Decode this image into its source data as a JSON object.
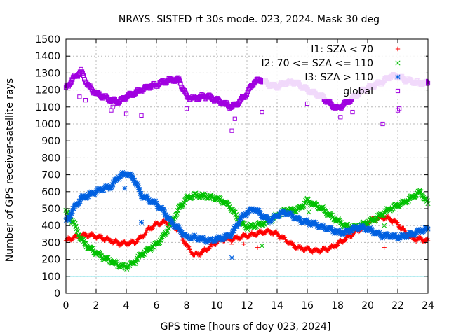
{
  "chart_data": {
    "type": "scatter",
    "title": "NRAYS. SISTED rt 30s mode. 023, 2024. Mask 30 deg",
    "xlabel": "GPS time [hours of doy 023, 2024]",
    "ylabel": "Number of GPS receiver-satellite rays",
    "xlim": [
      0,
      24
    ],
    "ylim": [
      0,
      1500
    ],
    "xticks": [
      "0",
      "2",
      "4",
      "6",
      "8",
      "10",
      "12",
      "14",
      "16",
      "18",
      "20",
      "22",
      "24"
    ],
    "yticks": [
      "0",
      "100",
      "200",
      "300",
      "400",
      "500",
      "600",
      "700",
      "800",
      "900",
      "1000",
      "1100",
      "1200",
      "1300",
      "1400",
      "1500"
    ],
    "grid": true,
    "legend_position": "top-right",
    "reference_line": {
      "y": 100,
      "color": "#00c8d8"
    },
    "series": [
      {
        "name": "I1: SZA < 70",
        "marker": "+",
        "color": "#ff0000",
        "x": [
          0,
          0.5,
          1,
          1.5,
          2,
          2.5,
          3,
          3.5,
          4,
          4.5,
          5,
          5.5,
          6,
          6.5,
          7,
          7.5,
          8,
          8.5,
          9,
          9.5,
          10,
          10.5,
          11,
          11.5,
          12,
          12.5,
          13,
          13.5,
          14,
          14.5,
          15,
          15.5,
          16,
          16.5,
          17,
          17.5,
          18,
          18.5,
          19,
          19.5,
          20,
          20.5,
          21,
          21.5,
          22,
          22.5,
          23,
          23.5,
          24
        ],
        "values": [
          310,
          330,
          340,
          345,
          335,
          325,
          310,
          295,
          295,
          300,
          330,
          380,
          410,
          420,
          410,
          370,
          280,
          225,
          240,
          270,
          305,
          320,
          320,
          330,
          340,
          350,
          360,
          365,
          350,
          320,
          285,
          265,
          260,
          250,
          255,
          265,
          290,
          320,
          350,
          380,
          420,
          440,
          450,
          440,
          410,
          360,
          320,
          320,
          310
        ]
      },
      {
        "name": "I2: 70 <= SZA <= 110",
        "marker": "x",
        "color": "#00c000",
        "x": [
          0,
          0.5,
          1,
          1.5,
          2,
          2.5,
          3,
          3.5,
          4,
          4.5,
          5,
          5.5,
          6,
          6.5,
          7,
          7.5,
          8,
          8.5,
          9,
          9.5,
          10,
          10.5,
          11,
          11.5,
          12,
          12.5,
          13,
          13.5,
          14,
          14.5,
          15,
          15.5,
          16,
          16.5,
          17,
          17.5,
          18,
          18.5,
          19,
          19.5,
          20,
          20.5,
          21,
          21.5,
          22,
          22.5,
          23,
          23.5,
          24
        ],
        "values": [
          480,
          420,
          320,
          270,
          240,
          210,
          190,
          165,
          155,
          180,
          230,
          260,
          290,
          340,
          420,
          500,
          560,
          580,
          575,
          570,
          560,
          540,
          500,
          420,
          390,
          400,
          410,
          430,
          460,
          490,
          490,
          500,
          550,
          520,
          500,
          460,
          430,
          400,
          385,
          400,
          420,
          440,
          470,
          500,
          520,
          540,
          570,
          600,
          530
        ]
      },
      {
        "name": "I3: SZA > 110",
        "marker": "*",
        "color": "#0060e0",
        "x": [
          0,
          0.5,
          1,
          1.5,
          2,
          2.5,
          3,
          3.5,
          4,
          4.5,
          5,
          5.5,
          6,
          6.5,
          7,
          7.5,
          8,
          8.5,
          9,
          9.5,
          10,
          10.5,
          11,
          11.5,
          12,
          12.5,
          13,
          13.5,
          14,
          14.5,
          15,
          15.5,
          16,
          16.5,
          17,
          17.5,
          18,
          18.5,
          19,
          19.5,
          20,
          20.5,
          21,
          21.5,
          22,
          22.5,
          23,
          23.5,
          24
        ],
        "values": [
          420,
          500,
          560,
          580,
          600,
          620,
          630,
          690,
          710,
          680,
          580,
          550,
          530,
          480,
          420,
          380,
          330,
          330,
          320,
          310,
          320,
          330,
          350,
          430,
          480,
          500,
          460,
          430,
          460,
          480,
          460,
          430,
          420,
          410,
          390,
          380,
          360,
          360,
          380,
          390,
          380,
          360,
          340,
          340,
          330,
          340,
          350,
          370,
          380
        ]
      },
      {
        "name": "global",
        "marker": "square",
        "color": "#a000e0",
        "x": [
          0,
          0.5,
          1,
          1.5,
          2,
          2.5,
          3,
          3.5,
          4,
          4.5,
          5,
          5.5,
          6,
          6.5,
          7,
          7.5,
          8,
          8.5,
          9,
          9.5,
          10,
          10.5,
          11,
          11.5,
          12,
          12.5,
          13,
          13.5,
          14,
          14.5,
          15,
          15.5,
          16,
          16.5,
          17,
          17.5,
          18,
          18.5,
          19,
          19.5,
          20,
          20.5,
          21,
          21.5,
          22,
          22.5,
          23,
          23.5,
          24
        ],
        "values": [
          1210,
          1270,
          1310,
          1220,
          1180,
          1160,
          1140,
          1130,
          1160,
          1180,
          1200,
          1220,
          1230,
          1250,
          1260,
          1260,
          1160,
          1150,
          1160,
          1160,
          1140,
          1120,
          1100,
          1130,
          1180,
          1250,
          1260,
          1230,
          1220,
          1240,
          1250,
          1230,
          1200,
          1180,
          1160,
          1120,
          1090,
          1120,
          1150,
          1190,
          1210,
          1230,
          1250,
          1280,
          1280,
          1260,
          1250,
          1240,
          1240
        ]
      }
    ],
    "outliers": [
      {
        "series": "I1: SZA < 70",
        "x": [
          11,
          11.8,
          12.7,
          21.1
        ],
        "values": [
          290,
          290,
          270,
          270
        ]
      },
      {
        "series": "I2: 70 <= SZA <= 110",
        "x": [
          13,
          16.1,
          21.1
        ],
        "values": [
          280,
          480,
          400
        ]
      },
      {
        "series": "I3: SZA > 110",
        "x": [
          0.2,
          3.9,
          5,
          11
        ],
        "values": [
          430,
          620,
          420,
          210
        ]
      },
      {
        "series": "global",
        "x": [
          0.9,
          1.3,
          3,
          3.1,
          4,
          5,
          8,
          11,
          11.2,
          13,
          16,
          18.2,
          19,
          21,
          22,
          22.1
        ],
        "values": [
          1160,
          1140,
          1080,
          1100,
          1060,
          1050,
          1090,
          960,
          1030,
          1070,
          1120,
          1040,
          1070,
          1000,
          1080,
          1090
        ]
      }
    ]
  }
}
